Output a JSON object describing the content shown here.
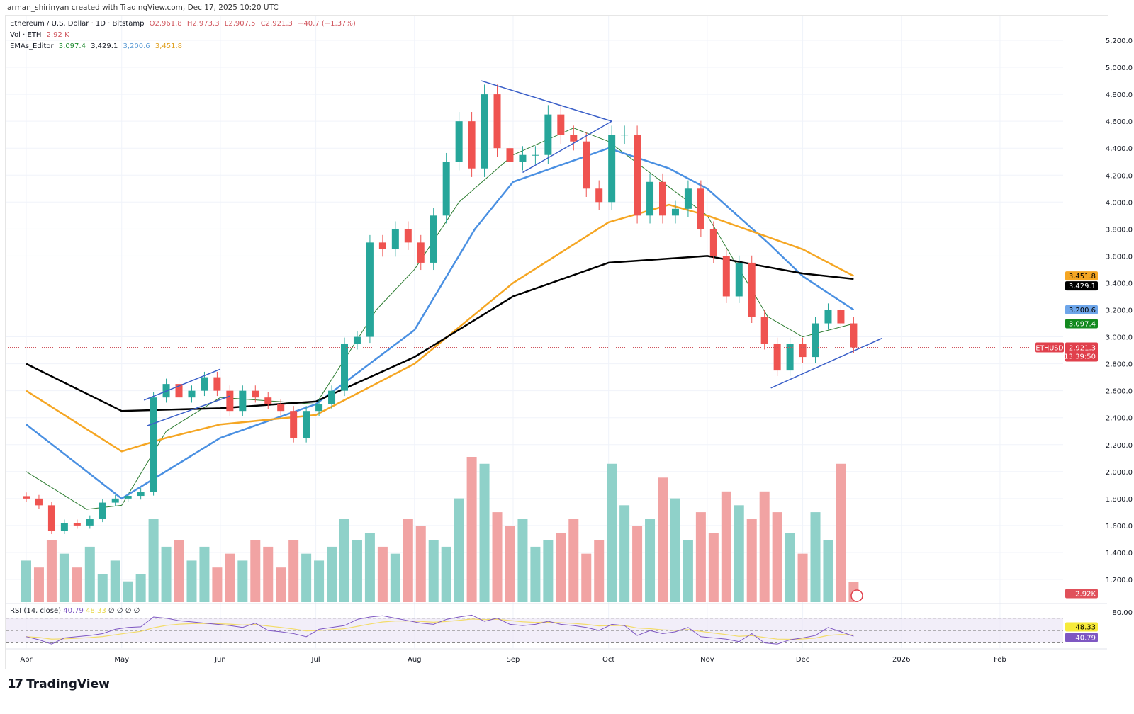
{
  "header": {
    "credit": "arman_shirinyan created with TradingView.com, Dec 17, 2025 10:20 UTC",
    "symbol_title": "Ethereum / U.S. Dollar · 1D · Bitstamp",
    "open": "O2,961.8",
    "high": "H2,973.3",
    "low": "L2,907.5",
    "close": "C2,921.3",
    "change": "−40.7 (−1.37%)",
    "vol_label": "Vol · ETH",
    "vol_value": "2.92 K",
    "ema_label": "EMAs_Editor",
    "ema20": "3,097.4",
    "ema200": "3,429.1",
    "ema50": "3,200.6",
    "ema100": "3,451.8"
  },
  "rsi_legend": {
    "label": "RSI (14, close)",
    "value": "40.79",
    "ma": "48.33",
    "extra": "∅ ∅ ∅ ∅"
  },
  "badges": {
    "ema100": "3,451.8",
    "ema200": "3,429.1",
    "ema50": "3,200.6",
    "ema20": "3,097.4",
    "symbol": "ETHUSD",
    "price": "2,921.3",
    "countdown": "13:39:50",
    "volume": "2.92K",
    "rsi_ma": "48.33",
    "rsi": "40.79"
  },
  "footer": {
    "brand": "TradingView"
  },
  "colors": {
    "up": "#26a69a",
    "down": "#ef5350",
    "vol_up": "#8fd1c9",
    "vol_down": "#f1a3a3",
    "ema20": "#2e7d32",
    "ema50": "#4a90e2",
    "ema100": "#f5a623",
    "ema200": "#000000",
    "trendline": "#3a5fc8",
    "rsi": "#7e57c2",
    "rsi_ma": "#f3dc6b"
  },
  "chart_data": [
    {
      "type": "candlestick",
      "title": "Ethereum / U.S. Dollar · 1D · Bitstamp",
      "y_ticks": [
        "5,200.0",
        "5,000.0",
        "4,800.0",
        "4,600.0",
        "4,400.0",
        "4,200.0",
        "4,000.0",
        "3,800.0",
        "3,600.0",
        "3,400.0",
        "3,200.0",
        "3,000.0",
        "2,800.0",
        "2,600.0",
        "2,400.0",
        "2,200.0",
        "2,000.0",
        "1,800.0",
        "1,600.0",
        "1,400.0",
        "1,200.0"
      ],
      "ylim": [
        1200,
        5200
      ],
      "x_ticks": [
        "Apr",
        "May",
        "Jun",
        "Jul",
        "Aug",
        "Sep",
        "Oct",
        "Nov",
        "Dec",
        "2026",
        "Feb"
      ],
      "x_tick_dates": [
        "2025-04-01",
        "2025-05-01",
        "2025-06-01",
        "2025-07-01",
        "2025-08-01",
        "2025-09-01",
        "2025-10-01",
        "2025-11-01",
        "2025-12-01",
        "2026-01-01",
        "2026-02-01"
      ],
      "xlim": [
        "2025-03-30",
        "2026-03-05"
      ],
      "dates": [
        "2025-04-01",
        "2025-04-05",
        "2025-04-09",
        "2025-04-13",
        "2025-04-17",
        "2025-04-21",
        "2025-04-25",
        "2025-04-29",
        "2025-05-03",
        "2025-05-07",
        "2025-05-11",
        "2025-05-15",
        "2025-05-19",
        "2025-05-23",
        "2025-05-27",
        "2025-05-31",
        "2025-06-04",
        "2025-06-08",
        "2025-06-12",
        "2025-06-16",
        "2025-06-20",
        "2025-06-24",
        "2025-06-28",
        "2025-07-02",
        "2025-07-06",
        "2025-07-10",
        "2025-07-14",
        "2025-07-18",
        "2025-07-22",
        "2025-07-26",
        "2025-07-30",
        "2025-08-03",
        "2025-08-07",
        "2025-08-11",
        "2025-08-15",
        "2025-08-19",
        "2025-08-23",
        "2025-08-27",
        "2025-08-31",
        "2025-09-04",
        "2025-09-08",
        "2025-09-12",
        "2025-09-16",
        "2025-09-20",
        "2025-09-24",
        "2025-09-28",
        "2025-10-02",
        "2025-10-06",
        "2025-10-10",
        "2025-10-14",
        "2025-10-18",
        "2025-10-22",
        "2025-10-26",
        "2025-10-30",
        "2025-11-03",
        "2025-11-07",
        "2025-11-11",
        "2025-11-15",
        "2025-11-19",
        "2025-11-23",
        "2025-11-27",
        "2025-12-01",
        "2025-12-05",
        "2025-12-09",
        "2025-12-13",
        "2025-12-17"
      ],
      "close": [
        1800,
        1750,
        1560,
        1620,
        1600,
        1650,
        1770,
        1800,
        1820,
        1850,
        2550,
        2650,
        2550,
        2600,
        2700,
        2600,
        2450,
        2600,
        2550,
        2500,
        2450,
        2250,
        2450,
        2500,
        2600,
        2950,
        3000,
        3700,
        3650,
        3800,
        3700,
        3550,
        3900,
        4300,
        4600,
        4250,
        4800,
        4400,
        4300,
        4350,
        4350,
        4650,
        4500,
        4450,
        4100,
        4000,
        4500,
        4500,
        3900,
        4150,
        3900,
        3950,
        4100,
        3800,
        3600,
        3300,
        3550,
        3150,
        2950,
        2750,
        2950,
        2850,
        3100,
        3200,
        3100,
        2921.3
      ],
      "volume_k": [
        6,
        5,
        9,
        7,
        5,
        8,
        4,
        6,
        3,
        4,
        12,
        8,
        9,
        6,
        8,
        5,
        7,
        6,
        9,
        8,
        5,
        9,
        7,
        6,
        8,
        12,
        9,
        10,
        8,
        7,
        12,
        11,
        9,
        8,
        15,
        21,
        20,
        13,
        11,
        12,
        8,
        9,
        10,
        12,
        7,
        9,
        20,
        14,
        11,
        12,
        18,
        15,
        9,
        13,
        10,
        16,
        14,
        12,
        16,
        13,
        10,
        7,
        13,
        9,
        20,
        2.92
      ],
      "emas": [
        {
          "name": "EMA 20",
          "color_key": "ema20",
          "dates": [
            "2025-04-01",
            "2025-04-20",
            "2025-05-01",
            "2025-05-15",
            "2025-06-01",
            "2025-07-01",
            "2025-07-20",
            "2025-08-01",
            "2025-08-15",
            "2025-09-01",
            "2025-09-20",
            "2025-10-01",
            "2025-10-15",
            "2025-11-01",
            "2025-11-20",
            "2025-12-01",
            "2025-12-17"
          ],
          "values": [
            2000,
            1720,
            1750,
            2300,
            2550,
            2500,
            3200,
            3500,
            4000,
            4350,
            4550,
            4450,
            4200,
            3900,
            3150,
            3000,
            3097.4
          ]
        },
        {
          "name": "EMA 50",
          "color_key": "ema50",
          "dates": [
            "2025-04-01",
            "2025-05-01",
            "2025-06-01",
            "2025-07-01",
            "2025-08-01",
            "2025-08-20",
            "2025-09-01",
            "2025-10-01",
            "2025-10-20",
            "2025-11-01",
            "2025-11-20",
            "2025-12-01",
            "2025-12-17"
          ],
          "values": [
            2350,
            1800,
            2250,
            2500,
            3050,
            3800,
            4150,
            4400,
            4250,
            4100,
            3700,
            3450,
            3200.6
          ]
        },
        {
          "name": "EMA 100",
          "color_key": "ema100",
          "dates": [
            "2025-04-01",
            "2025-05-01",
            "2025-05-15",
            "2025-06-01",
            "2025-07-01",
            "2025-08-01",
            "2025-09-01",
            "2025-10-01",
            "2025-10-20",
            "2025-11-01",
            "2025-12-01",
            "2025-12-17"
          ],
          "values": [
            2600,
            2150,
            2250,
            2350,
            2420,
            2800,
            3400,
            3850,
            3980,
            3900,
            3650,
            3451.8
          ]
        },
        {
          "name": "EMA 200",
          "color_key": "ema200",
          "dates": [
            "2025-04-01",
            "2025-05-01",
            "2025-06-01",
            "2025-07-01",
            "2025-08-01",
            "2025-09-01",
            "2025-10-01",
            "2025-11-01",
            "2025-12-01",
            "2025-12-17"
          ],
          "values": [
            2800,
            2450,
            2470,
            2520,
            2850,
            3300,
            3550,
            3600,
            3470,
            3429.1
          ]
        }
      ],
      "trendlines": [
        {
          "from": [
            "2025-08-22",
            4900
          ],
          "to": [
            "2025-10-02",
            4600
          ]
        },
        {
          "from": [
            "2025-09-04",
            4220
          ],
          "to": [
            "2025-10-02",
            4600
          ]
        },
        {
          "from": [
            "2025-05-08",
            2530
          ],
          "to": [
            "2025-06-01",
            2760
          ]
        },
        {
          "from": [
            "2025-05-09",
            2340
          ],
          "to": [
            "2025-06-04",
            2560
          ]
        },
        {
          "from": [
            "2025-11-21",
            2620
          ],
          "to": [
            "2025-12-26",
            2990
          ]
        }
      ],
      "last_price": 2921.3
    },
    {
      "type": "line",
      "title": "RSI (14, close)",
      "ylim": [
        20,
        85
      ],
      "y_ticks": [
        "80.00"
      ],
      "bands": [
        70,
        50,
        30
      ],
      "values": [
        40,
        35,
        28,
        38,
        40,
        42,
        45,
        52,
        55,
        56,
        72,
        70,
        66,
        64,
        62,
        60,
        58,
        55,
        62,
        50,
        48,
        45,
        40,
        52,
        55,
        58,
        68,
        72,
        74,
        70,
        66,
        62,
        60,
        68,
        72,
        75,
        65,
        70,
        60,
        58,
        60,
        65,
        60,
        58,
        55,
        50,
        60,
        58,
        42,
        50,
        45,
        48,
        55,
        40,
        38,
        36,
        32,
        45,
        30,
        28,
        35,
        38,
        42,
        55,
        48,
        40.79
      ],
      "ma_last": 48.33
    }
  ]
}
